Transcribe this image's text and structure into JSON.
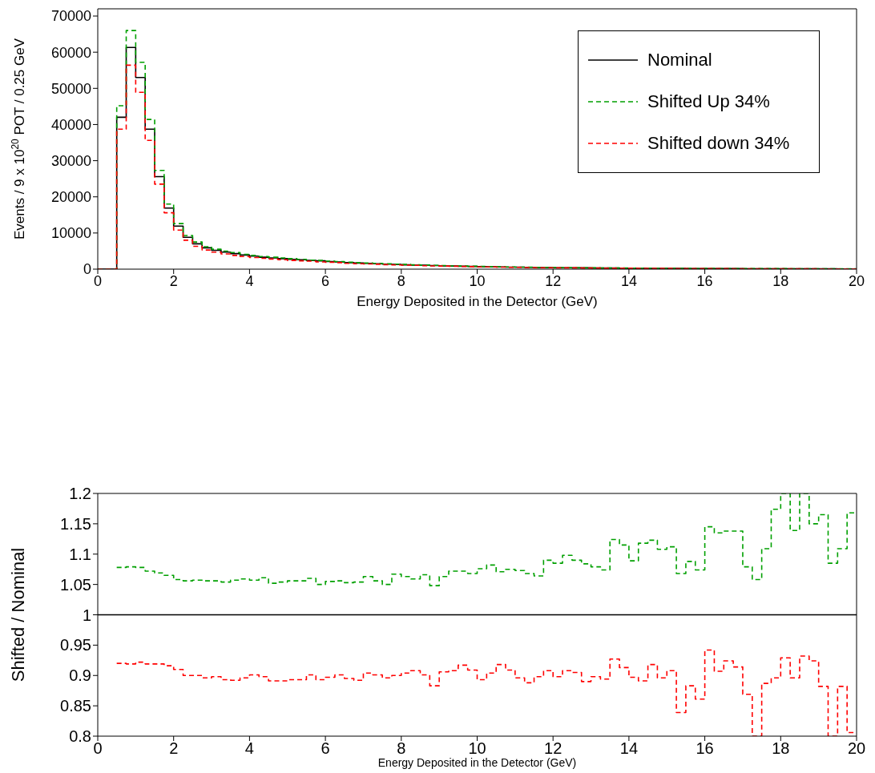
{
  "chart_data": [
    {
      "type": "histogram",
      "ylabel": "Events / 9 x 10$^{20}$ POT / 0.25 GeV",
      "xlabel": "Energy Deposited in the Detector (GeV)",
      "bins": [
        0,
        0.25,
        0.5,
        0.75,
        1,
        1.25,
        1.5,
        1.75,
        2,
        2.25,
        2.5,
        2.75,
        3,
        3.25,
        3.5,
        3.75,
        4,
        4.25,
        4.5,
        4.75,
        5,
        5.25,
        5.5,
        5.75,
        6,
        6.25,
        6.5,
        6.75,
        7,
        7.25,
        7.5,
        7.75,
        8,
        8.25,
        8.5,
        8.75,
        9,
        9.25,
        9.5,
        9.75,
        10,
        10.25,
        10.5,
        10.75,
        11,
        11.25,
        11.5,
        11.75,
        12,
        12.25,
        12.5,
        12.75,
        13,
        13.25,
        13.5,
        13.75,
        14,
        14.25,
        14.5,
        14.75,
        15,
        15.25,
        15.5,
        15.75,
        16,
        16.25,
        16.5,
        16.75,
        17,
        17.25,
        17.5,
        17.75,
        18,
        18.25,
        18.5,
        18.75,
        19,
        19.25,
        19.5,
        19.75,
        20
      ],
      "xlim": [
        0,
        20
      ],
      "xticks": [
        0,
        2,
        4,
        6,
        8,
        10,
        12,
        14,
        16,
        18,
        20
      ],
      "ylim": [
        0,
        72000
      ],
      "yticks": [
        0,
        10000,
        20000,
        30000,
        40000,
        50000,
        60000,
        70000
      ],
      "legend": "top right",
      "series": [
        {
          "name": "Nominal",
          "color": "#000000",
          "line_style": "solid",
          "values": [
            0,
            0,
            42000,
            61300,
            53000,
            38700,
            25600,
            16900,
            11900,
            8800,
            7000,
            5900,
            5200,
            4700,
            4300,
            3900,
            3600,
            3300,
            3100,
            2900,
            2700,
            2600,
            2400,
            2300,
            2100,
            2000,
            1800,
            1700,
            1600,
            1500,
            1400,
            1300,
            1200,
            1100,
            1100,
            1000,
            900,
            850,
            800,
            750,
            700,
            650,
            600,
            550,
            550,
            500,
            450,
            450,
            400,
            400,
            350,
            350,
            300,
            300,
            300,
            250,
            250,
            250,
            200,
            200,
            200,
            200,
            150,
            150,
            150,
            150,
            150,
            150,
            100,
            100,
            100,
            100,
            100,
            100,
            100,
            100,
            100,
            100,
            50,
            50
          ]
        },
        {
          "name": "Shifted Up 34%",
          "color": "#00a000",
          "line_style": "dashed",
          "values": [
            0,
            0,
            45200,
            66000,
            57200,
            41400,
            27300,
            18000,
            12600,
            9300,
            7500,
            6200,
            5500,
            5000,
            4600,
            4100,
            3800,
            3500,
            3300,
            3100,
            2900,
            2700,
            2500,
            2400,
            2200,
            2100,
            1900,
            1800,
            1700,
            1600,
            1500,
            1400,
            1300,
            1200,
            1100,
            1050,
            1000,
            900,
            850,
            800,
            750,
            700,
            650,
            600,
            550,
            550,
            500,
            500,
            450,
            400,
            400,
            350,
            350,
            300,
            300,
            300,
            250,
            250,
            250,
            200,
            200,
            200,
            200,
            150,
            200,
            150,
            150,
            150,
            150,
            150,
            150,
            150,
            150,
            100,
            100,
            100,
            100,
            100,
            100,
            100
          ]
        },
        {
          "name": "Shifted down 34%",
          "color": "#ff0000",
          "line_style": "dashed",
          "values": [
            0,
            0,
            38700,
            56400,
            48900,
            35600,
            23500,
            15600,
            10800,
            8000,
            6300,
            5300,
            4700,
            4200,
            3800,
            3500,
            3200,
            3000,
            2800,
            2600,
            2400,
            2300,
            2200,
            2000,
            1900,
            1800,
            1600,
            1500,
            1450,
            1350,
            1250,
            1150,
            1100,
            1050,
            950,
            900,
            850,
            800,
            750,
            700,
            600,
            600,
            550,
            500,
            500,
            450,
            400,
            400,
            350,
            350,
            350,
            300,
            300,
            250,
            250,
            250,
            250,
            200,
            200,
            200,
            200,
            150,
            150,
            150,
            150,
            150,
            150,
            100,
            100,
            100,
            100,
            100,
            100,
            100,
            100,
            100,
            50,
            50,
            50,
            50
          ]
        }
      ]
    },
    {
      "type": "histogram",
      "ylabel": "Shifted / Nominal",
      "xlabel": "Energy Deposited in the Detector (GeV)",
      "bins": [
        0.5,
        0.75,
        1,
        1.25,
        1.5,
        1.75,
        2,
        2.25,
        2.5,
        2.75,
        3,
        3.25,
        3.5,
        3.75,
        4,
        4.25,
        4.5,
        4.75,
        5,
        5.25,
        5.5,
        5.75,
        6,
        6.25,
        6.5,
        6.75,
        7,
        7.25,
        7.5,
        7.75,
        8,
        8.25,
        8.5,
        8.75,
        9,
        9.25,
        9.5,
        9.75,
        10,
        10.25,
        10.5,
        10.75,
        11,
        11.25,
        11.5,
        11.75,
        12,
        12.25,
        12.5,
        12.75,
        13,
        13.25,
        13.5,
        13.75,
        14,
        14.25,
        14.5,
        14.75,
        15,
        15.25,
        15.5,
        15.75,
        16,
        16.25,
        16.5,
        16.75,
        17,
        17.25,
        17.5,
        17.75,
        18,
        18.25,
        18.5,
        18.75,
        19,
        19.25,
        19.5,
        19.75,
        20
      ],
      "xlim": [
        0,
        20
      ],
      "xticks": [
        0,
        2,
        4,
        6,
        8,
        10,
        12,
        14,
        16,
        18,
        20
      ],
      "ylim": [
        0.8,
        1.2
      ],
      "yticks": [
        0.8,
        0.85,
        0.9,
        0.95,
        1,
        1.05,
        1.1,
        1.15,
        1.2
      ],
      "ref_lines": [
        {
          "axis": "y",
          "value": 1,
          "color": "#000000"
        }
      ],
      "series": [
        {
          "color": "#00a000",
          "line_style": "dashed",
          "values": [
            1.078,
            1.079,
            1.078,
            1.072,
            1.069,
            1.065,
            1.058,
            1.056,
            1.057,
            1.056,
            1.056,
            1.054,
            1.057,
            1.059,
            1.057,
            1.061,
            1.052,
            1.054,
            1.056,
            1.056,
            1.06,
            1.05,
            1.055,
            1.056,
            1.053,
            1.054,
            1.063,
            1.056,
            1.05,
            1.067,
            1.063,
            1.059,
            1.066,
            1.048,
            1.063,
            1.072,
            1.072,
            1.068,
            1.076,
            1.082,
            1.071,
            1.075,
            1.073,
            1.068,
            1.064,
            1.09,
            1.085,
            1.098,
            1.09,
            1.084,
            1.079,
            1.074,
            1.124,
            1.115,
            1.089,
            1.118,
            1.123,
            1.108,
            1.112,
            1.068,
            1.088,
            1.074,
            1.145,
            1.135,
            1.138,
            1.138,
            1.079,
            1.058,
            1.109,
            1.174,
            1.2,
            1.139,
            1.2,
            1.15,
            1.165,
            1.085,
            1.109,
            1.168
          ]
        },
        {
          "color": "#ff0000",
          "line_style": "dashed",
          "values": [
            0.92,
            0.919,
            0.922,
            0.919,
            0.919,
            0.916,
            0.91,
            0.9,
            0.9,
            0.896,
            0.898,
            0.893,
            0.892,
            0.896,
            0.901,
            0.898,
            0.891,
            0.891,
            0.893,
            0.893,
            0.901,
            0.893,
            0.897,
            0.901,
            0.895,
            0.892,
            0.904,
            0.901,
            0.896,
            0.9,
            0.904,
            0.908,
            0.901,
            0.883,
            0.906,
            0.908,
            0.917,
            0.909,
            0.893,
            0.904,
            0.918,
            0.909,
            0.896,
            0.888,
            0.898,
            0.908,
            0.898,
            0.908,
            0.905,
            0.89,
            0.898,
            0.894,
            0.927,
            0.913,
            0.897,
            0.891,
            0.918,
            0.896,
            0.908,
            0.839,
            0.883,
            0.861,
            0.942,
            0.907,
            0.924,
            0.914,
            0.869,
            0.8,
            0.887,
            0.896,
            0.929,
            0.896,
            0.932,
            0.924,
            0.882,
            0.8,
            0.882,
            0.806
          ]
        }
      ]
    }
  ]
}
